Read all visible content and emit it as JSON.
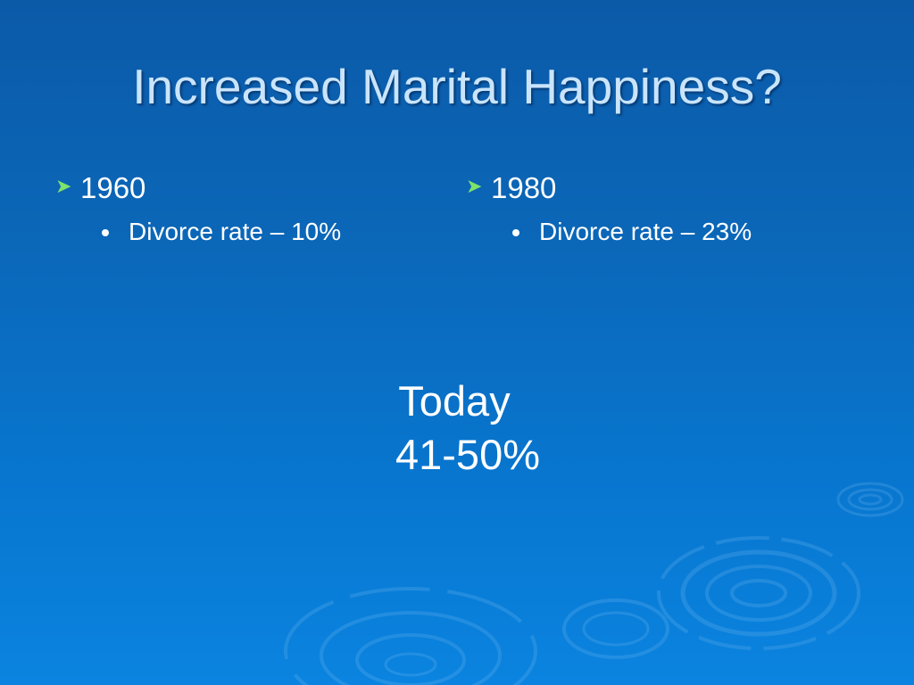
{
  "slide": {
    "title": "Increased Marital Happiness?",
    "columns": [
      {
        "heading": "1960",
        "bullet": "Divorce rate – 10%"
      },
      {
        "heading": "1980",
        "bullet": "Divorce rate – 23%"
      }
    ],
    "today": {
      "label": "Today",
      "value": "41-50%"
    }
  },
  "colors": {
    "background_top": "#0b5aa8",
    "background_bottom": "#0a84e0",
    "title_text": "#c9e4fb",
    "bullet_arrow": "#7de36a",
    "body_text": "#ffffff"
  },
  "icons": {
    "heading_bullet": "arrowhead-bullet-icon",
    "sub_bullet": "round-dot-bullet-icon",
    "decoration": "water-ripple-decoration"
  }
}
